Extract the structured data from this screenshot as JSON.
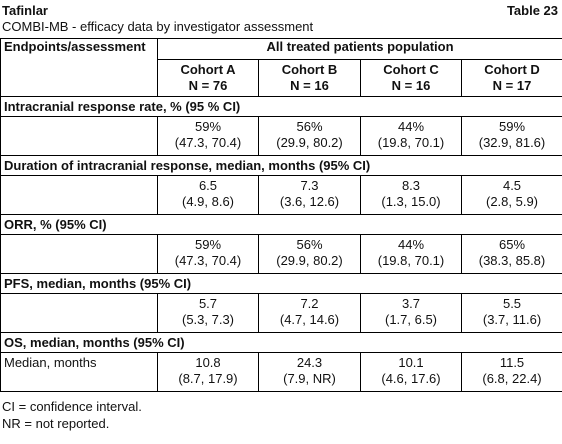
{
  "header": {
    "brand": "Tafinlar",
    "table_label": "Table 23",
    "caption": "COMBI-MB - efficacy data by investigator assessment"
  },
  "table": {
    "corner": "Endpoints/assessment",
    "group": "All treated patients population",
    "columns": [
      {
        "name": "Cohort A",
        "n": "N = 76"
      },
      {
        "name": "Cohort B",
        "n": "N = 16"
      },
      {
        "name": "Cohort C",
        "n": "N = 16"
      },
      {
        "name": "Cohort D",
        "n": "N = 17"
      }
    ],
    "sections": [
      {
        "title": "Intracranial response rate, % (95 % CI)",
        "rows": [
          {
            "cells": [
              {
                "value": "59%",
                "ci": "(47.3, 70.4)"
              },
              {
                "value": "56%",
                "ci": "(29.9, 80.2)"
              },
              {
                "value": "44%",
                "ci": "(19.8, 70.1)"
              },
              {
                "value": "59%",
                "ci": "(32.9, 81.6)"
              }
            ]
          }
        ]
      },
      {
        "title": "Duration of intracranial response, median, months (95% CI)",
        "rows": [
          {
            "cells": [
              {
                "value": "6.5",
                "ci": "(4.9, 8.6)"
              },
              {
                "value": "7.3",
                "ci": "(3.6, 12.6)"
              },
              {
                "value": "8.3",
                "ci": "(1.3, 15.0)"
              },
              {
                "value": "4.5",
                "ci": "(2.8, 5.9)"
              }
            ]
          }
        ]
      },
      {
        "title": "ORR, % (95% CI)",
        "rows": [
          {
            "cells": [
              {
                "value": "59%",
                "ci": "(47.3, 70.4)"
              },
              {
                "value": "56%",
                "ci": "(29.9, 80.2)"
              },
              {
                "value": "44%",
                "ci": "(19.8, 70.1)"
              },
              {
                "value": "65%",
                "ci": "(38.3, 85.8)"
              }
            ]
          }
        ]
      },
      {
        "title": "PFS, median, months (95% CI)",
        "rows": [
          {
            "cells": [
              {
                "value": "5.7",
                "ci": "(5.3, 7.3)"
              },
              {
                "value": "7.2",
                "ci": "(4.7, 14.6)"
              },
              {
                "value": "3.7",
                "ci": "(1.7, 6.5)"
              },
              {
                "value": "5.5",
                "ci": "(3.7, 11.6)"
              }
            ]
          }
        ]
      },
      {
        "title": "OS, median, months (95% CI)",
        "rows": [
          {
            "label": "Median, months",
            "cells": [
              {
                "value": "10.8",
                "ci": "(8.7, 17.9)"
              },
              {
                "value": "24.3",
                "ci": "(7.9, NR)"
              },
              {
                "value": "10.1",
                "ci": "(4.6, 17.6)"
              },
              {
                "value": "11.5",
                "ci": "(6.8, 22.4)"
              }
            ]
          }
        ]
      }
    ]
  },
  "footnotes": [
    "CI = confidence interval.",
    "NR = not reported."
  ]
}
